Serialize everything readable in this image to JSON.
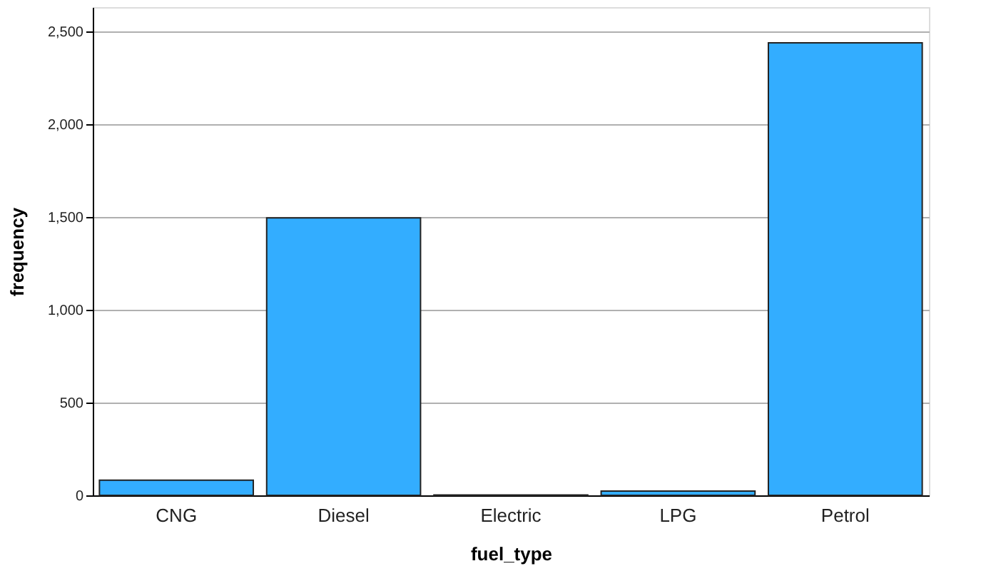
{
  "chart_data": {
    "type": "bar",
    "xlabel": "fuel_type",
    "ylabel": "frequency",
    "categories": [
      "CNG",
      "Diesel",
      "Electric",
      "LPG",
      "Petrol"
    ],
    "values": [
      82,
      1495,
      2,
      23,
      2438
    ],
    "color": "#33adff",
    "ylim": [
      0,
      2630
    ],
    "yticks": [
      {
        "value": 0,
        "label": "0"
      },
      {
        "value": 500,
        "label": "500"
      },
      {
        "value": 1000,
        "label": "1,000"
      },
      {
        "value": 1500,
        "label": "1,500"
      },
      {
        "value": 2000,
        "label": "2,000"
      },
      {
        "value": 2500,
        "label": "2,500"
      }
    ],
    "grid": "y",
    "legend": false
  }
}
